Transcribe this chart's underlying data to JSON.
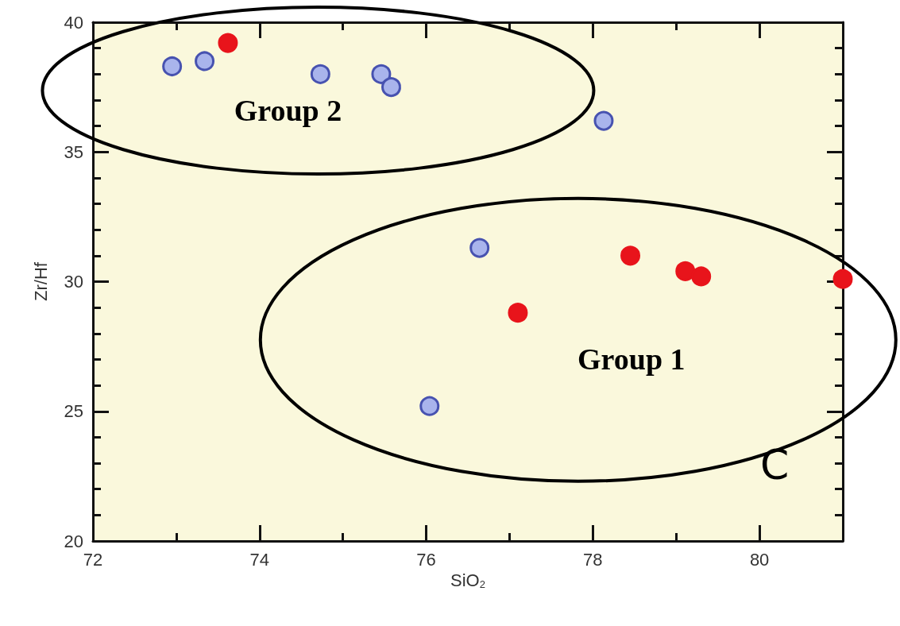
{
  "chart_data": {
    "type": "scatter",
    "xlabel": "SiO$_{2}$",
    "ylabel": "Zr/Hf",
    "xlim": [
      72,
      81
    ],
    "xticks": [
      72,
      74,
      76,
      78,
      80
    ],
    "ylim": [
      20,
      40
    ],
    "yticks": [
      20,
      25,
      30,
      35,
      40
    ],
    "grid": false,
    "marker": "circle",
    "series": [
      {
        "color": "#a9b4ec",
        "x": [
          72.95,
          73.34,
          74.73,
          75.46,
          75.58,
          78.13,
          76.64,
          76.04
        ],
        "values": [
          38.3,
          38.5,
          38.0,
          38.0,
          37.5,
          36.2,
          31.3,
          25.2
        ]
      },
      {
        "color": "#e8141b",
        "x": [
          73.62,
          77.1,
          78.45,
          79.11,
          79.3,
          81.0
        ],
        "values": [
          39.2,
          28.8,
          31.0,
          30.4,
          30.2,
          30.1
        ]
      }
    ],
    "annotations": [
      "Group 2",
      "Group 1",
      "C"
    ]
  }
}
